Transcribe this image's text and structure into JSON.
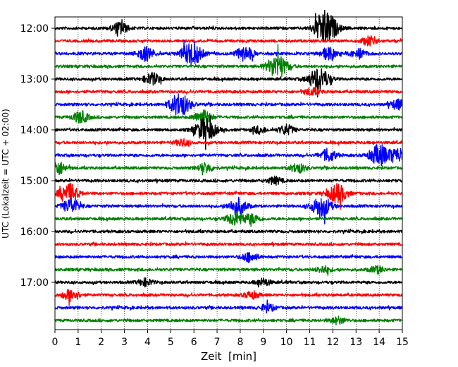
{
  "chart_data": {
    "type": "line",
    "title": "",
    "xlabel": "Zeit  [min]",
    "ylabel": "UTC (Lokalzeit = UTC + 02:00)",
    "xlim": [
      0,
      15
    ],
    "x_ticks": [
      "0",
      "1",
      "2",
      "3",
      "4",
      "5",
      "6",
      "7",
      "8",
      "9",
      "10",
      "11",
      "12",
      "13",
      "14",
      "15"
    ],
    "y_tick_labels": [
      "12:00",
      "13:00",
      "14:00",
      "15:00",
      "16:00",
      "17:00"
    ],
    "grid": "vertical dotted",
    "colors": [
      "#000000",
      "#ff0000",
      "#0000ff",
      "#008000"
    ],
    "traces": [
      {
        "start": "12:00",
        "color": "#000000",
        "events": [
          [
            2.8,
            0.5
          ],
          [
            11.8,
            1.0
          ],
          [
            11.5,
            0.7
          ]
        ]
      },
      {
        "start": "12:15",
        "color": "#ff0000",
        "events": [
          [
            13.6,
            0.4
          ]
        ]
      },
      {
        "start": "12:30",
        "color": "#0000ff",
        "events": [
          [
            3.9,
            0.6
          ],
          [
            5.9,
            1.0
          ],
          [
            8.2,
            0.6
          ],
          [
            11.8,
            0.5
          ],
          [
            13.1,
            0.4
          ]
        ]
      },
      {
        "start": "12:45",
        "color": "#008000",
        "events": [
          [
            9.6,
            1.0
          ]
        ]
      },
      {
        "start": "13:00",
        "color": "#000000",
        "events": [
          [
            4.2,
            0.5
          ],
          [
            11.4,
            1.0
          ]
        ]
      },
      {
        "start": "13:15",
        "color": "#ff0000",
        "events": [
          [
            11.1,
            0.3
          ]
        ]
      },
      {
        "start": "13:30",
        "color": "#0000ff",
        "events": [
          [
            5.4,
            1.0
          ],
          [
            14.8,
            0.4
          ]
        ]
      },
      {
        "start": "13:45",
        "color": "#008000",
        "events": [
          [
            1.1,
            0.5
          ],
          [
            6.4,
            0.6
          ]
        ]
      },
      {
        "start": "14:00",
        "color": "#000000",
        "events": [
          [
            6.5,
            1.0
          ],
          [
            10.0,
            0.4
          ],
          [
            8.8,
            0.3
          ]
        ]
      },
      {
        "start": "14:15",
        "color": "#ff0000",
        "events": [
          [
            5.5,
            0.3
          ]
        ]
      },
      {
        "start": "14:30",
        "color": "#0000ff",
        "events": [
          [
            11.8,
            0.5
          ],
          [
            14.0,
            0.9
          ],
          [
            14.8,
            0.6
          ]
        ]
      },
      {
        "start": "14:45",
        "color": "#008000",
        "events": [
          [
            0.1,
            0.6
          ],
          [
            6.5,
            0.4
          ],
          [
            10.5,
            0.4
          ]
        ]
      },
      {
        "start": "15:00",
        "color": "#000000",
        "events": [
          [
            9.5,
            0.3
          ]
        ]
      },
      {
        "start": "15:15",
        "color": "#ff0000",
        "events": [
          [
            0.6,
            0.8
          ],
          [
            12.2,
            0.8
          ]
        ]
      },
      {
        "start": "15:30",
        "color": "#0000ff",
        "events": [
          [
            0.7,
            0.6
          ],
          [
            7.9,
            0.7
          ],
          [
            11.5,
            0.9
          ]
        ]
      },
      {
        "start": "15:45",
        "color": "#008000",
        "events": [
          [
            7.8,
            0.6
          ],
          [
            8.5,
            0.4
          ]
        ]
      },
      {
        "start": "16:00",
        "color": "#000000",
        "events": []
      },
      {
        "start": "16:15",
        "color": "#ff0000",
        "events": []
      },
      {
        "start": "16:30",
        "color": "#0000ff",
        "events": [
          [
            8.4,
            0.4
          ]
        ]
      },
      {
        "start": "16:45",
        "color": "#008000",
        "events": [
          [
            11.6,
            0.3
          ],
          [
            13.9,
            0.3
          ]
        ]
      },
      {
        "start": "17:00",
        "color": "#000000",
        "events": [
          [
            3.9,
            0.3
          ],
          [
            9.0,
            0.3
          ]
        ]
      },
      {
        "start": "17:15",
        "color": "#ff0000",
        "events": [
          [
            0.7,
            0.5
          ],
          [
            8.5,
            0.3
          ]
        ]
      },
      {
        "start": "17:30",
        "color": "#0000ff",
        "events": [
          [
            9.2,
            0.3
          ]
        ]
      },
      {
        "start": "17:45",
        "color": "#008000",
        "events": [
          [
            12.2,
            0.3
          ]
        ]
      }
    ]
  }
}
